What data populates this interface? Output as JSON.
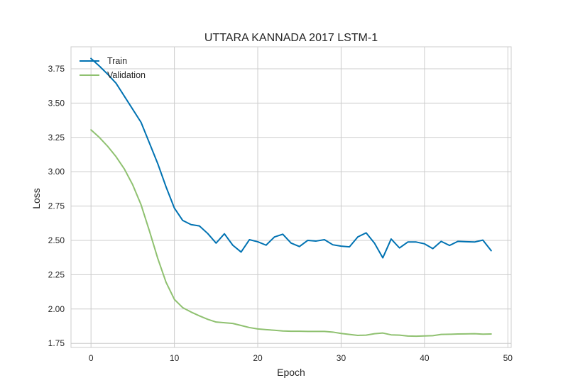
{
  "chart_data": {
    "type": "line",
    "title": "UTTARA KANNADA 2017 LSTM-1",
    "xlabel": "Epoch",
    "ylabel": "Loss",
    "xlim": [
      -2.4,
      50.4
    ],
    "ylim": [
      1.72,
      3.91
    ],
    "xticks": [
      0,
      10,
      20,
      30,
      40,
      50
    ],
    "yticks": [
      1.75,
      2.0,
      2.25,
      2.5,
      2.75,
      3.0,
      3.25,
      3.5,
      3.75
    ],
    "ytick_labels": [
      "1.75",
      "2.00",
      "2.25",
      "2.50",
      "2.75",
      "3.00",
      "3.25",
      "3.50",
      "3.75"
    ],
    "grid": true,
    "legend_position": "upper-left",
    "x": [
      0,
      1,
      2,
      3,
      4,
      5,
      6,
      7,
      8,
      9,
      10,
      11,
      12,
      13,
      14,
      15,
      16,
      17,
      18,
      19,
      20,
      21,
      22,
      23,
      24,
      25,
      26,
      27,
      28,
      29,
      30,
      31,
      32,
      33,
      34,
      35,
      36,
      37,
      38,
      39,
      40,
      41,
      42,
      43,
      44,
      45,
      46,
      47,
      48
    ],
    "series": [
      {
        "name": "Train",
        "color": "#0072b2",
        "values": [
          3.825,
          3.77,
          3.71,
          3.645,
          3.55,
          3.455,
          3.36,
          3.21,
          3.06,
          2.89,
          2.735,
          2.645,
          2.615,
          2.605,
          2.55,
          2.48,
          2.548,
          2.465,
          2.415,
          2.505,
          2.49,
          2.465,
          2.525,
          2.545,
          2.48,
          2.455,
          2.5,
          2.495,
          2.505,
          2.468,
          2.458,
          2.453,
          2.525,
          2.555,
          2.48,
          2.373,
          2.51,
          2.445,
          2.488,
          2.488,
          2.475,
          2.44,
          2.493,
          2.463,
          2.493,
          2.49,
          2.488,
          2.502,
          2.425
        ]
      },
      {
        "name": "Validation",
        "color": "#8fc170",
        "values": [
          3.305,
          3.25,
          3.185,
          3.11,
          3.02,
          2.905,
          2.76,
          2.57,
          2.37,
          2.195,
          2.07,
          2.01,
          1.978,
          1.95,
          1.925,
          1.905,
          1.9,
          1.895,
          1.88,
          1.865,
          1.855,
          1.85,
          1.845,
          1.84,
          1.838,
          1.838,
          1.837,
          1.837,
          1.837,
          1.832,
          1.822,
          1.815,
          1.808,
          1.81,
          1.82,
          1.825,
          1.812,
          1.81,
          1.803,
          1.802,
          1.804,
          1.806,
          1.815,
          1.816,
          1.818,
          1.819,
          1.82,
          1.817,
          1.818
        ]
      }
    ]
  }
}
